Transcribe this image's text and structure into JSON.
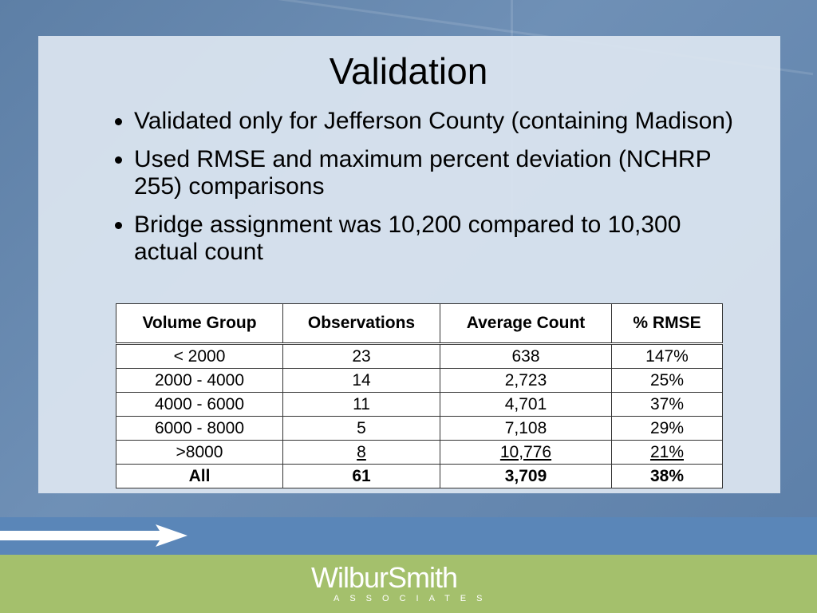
{
  "title": "Validation",
  "bullets": [
    "Validated only for Jefferson County (containing Madison)",
    "Used RMSE and maximum percent deviation (NCHRP 255) comparisons",
    "Bridge assignment was 10,200 compared to 10,300 actual count"
  ],
  "table": {
    "header": [
      "Volume Group",
      "Observations",
      "Average Count",
      "% RMSE"
    ],
    "rows": [
      [
        "< 2000",
        "23",
        "638",
        "147%"
      ],
      [
        "2000 - 4000",
        "14",
        "2,723",
        "25%"
      ],
      [
        "4000 - 6000",
        "11",
        "4,701",
        "37%"
      ],
      [
        "6000 - 8000",
        "5",
        "7,108",
        "29%"
      ],
      [
        ">8000",
        "8",
        "10,776",
        "21%"
      ],
      [
        "All",
        "61",
        "3,709",
        "38%"
      ]
    ]
  },
  "logo": {
    "name": "WilburSmith",
    "sub": "ASSOCIATES"
  }
}
